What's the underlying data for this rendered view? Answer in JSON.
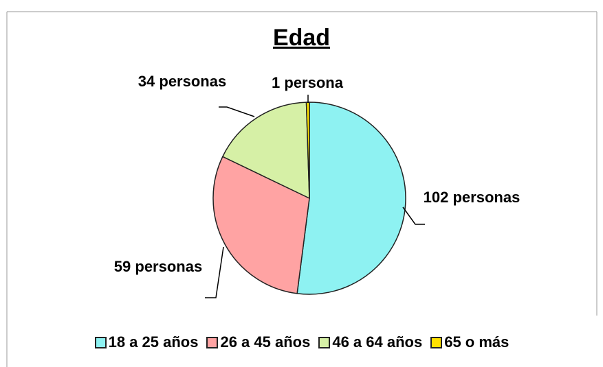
{
  "chart_data": {
    "type": "pie",
    "title": "Edad",
    "categories": [
      "18 a 25 años",
      "26 a 45 años",
      "46 a 64 años",
      "65 o más"
    ],
    "values": [
      102,
      59,
      34,
      1
    ],
    "value_labels": [
      "102 personas",
      "59 personas",
      "34 personas",
      "1 persona"
    ],
    "colors": [
      "#8ef2f2",
      "#ffa3a3",
      "#d6f0a6",
      "#ffe100"
    ],
    "legend": "bottom"
  }
}
